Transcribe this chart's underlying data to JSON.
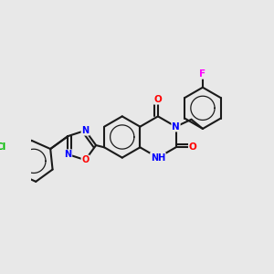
{
  "background_color": "#e8e8e8",
  "bond_color": "#1a1a1a",
  "bond_width": 1.5,
  "atom_colors": {
    "N": "#0000ff",
    "O": "#ff0000",
    "Cl": "#00bb00",
    "F": "#ff00ff",
    "H": "#00aaaa",
    "C": "#1a1a1a"
  },
  "font_size": 7.5
}
